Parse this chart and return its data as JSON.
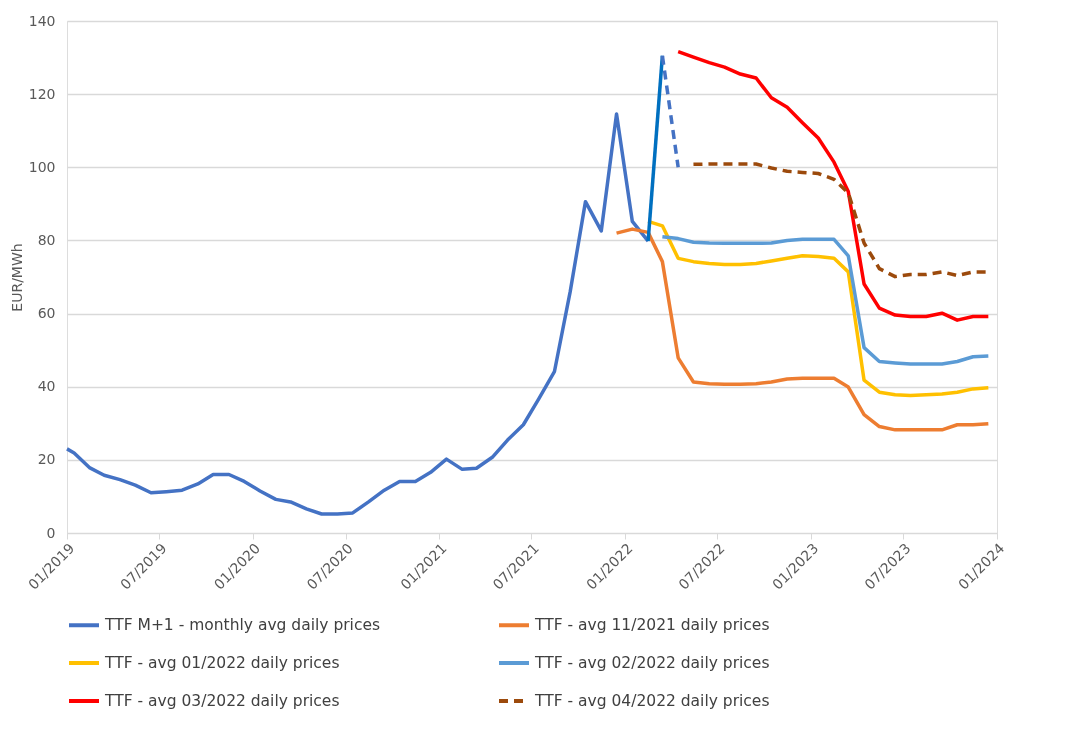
{
  "chart_data": {
    "type": "line",
    "ylabel": "EUR/MWh",
    "xlim": [
      "2019-01-01",
      "2024-01-01"
    ],
    "xticks": [
      {
        "value": "2019-01-01",
        "label": "01/2019"
      },
      {
        "value": "2019-07-01",
        "label": "07/2019"
      },
      {
        "value": "2020-01-01",
        "label": "01/2020"
      },
      {
        "value": "2020-07-01",
        "label": "07/2020"
      },
      {
        "value": "2021-01-01",
        "label": "01/2021"
      },
      {
        "value": "2021-07-01",
        "label": "07/2021"
      },
      {
        "value": "2022-01-01",
        "label": "01/2022"
      },
      {
        "value": "2022-07-01",
        "label": "07/2022"
      },
      {
        "value": "2023-01-01",
        "label": "01/2023"
      },
      {
        "value": "2023-07-01",
        "label": "07/2023"
      },
      {
        "value": "2024-01-01",
        "label": "01/2024"
      }
    ],
    "ylim": [
      0,
      140
    ],
    "yticks": [
      0,
      20,
      40,
      60,
      80,
      100,
      120,
      140
    ],
    "grid": "y",
    "legend": "bottom",
    "line_style": "solid",
    "series": [
      {
        "name": "TTF M+1 - monthly avg daily prices",
        "color": "#4472c4",
        "x": [
          "2019-01-01",
          "2019-01-15",
          "2019-02-15",
          "2019-03-15",
          "2019-04-15",
          "2019-05-15",
          "2019-06-15",
          "2019-07-15",
          "2019-08-15",
          "2019-09-15",
          "2019-10-15",
          "2019-11-15",
          "2019-12-15",
          "2020-01-15",
          "2020-02-15",
          "2020-03-15",
          "2020-04-15",
          "2020-05-15",
          "2020-06-15",
          "2020-07-15",
          "2020-08-15",
          "2020-09-15",
          "2020-10-15",
          "2020-11-15",
          "2020-12-15",
          "2021-01-15",
          "2021-02-15",
          "2021-03-15",
          "2021-04-15",
          "2021-05-15",
          "2021-06-15",
          "2021-07-15",
          "2021-08-15",
          "2021-09-15",
          "2021-10-15",
          "2021-11-15",
          "2021-12-15",
          "2022-01-15",
          "2022-02-15"
        ],
        "values": [
          23.0,
          21.9,
          17.8,
          15.8,
          14.6,
          13.1,
          11.0,
          11.3,
          11.7,
          13.4,
          16.0,
          16.0,
          14.1,
          11.5,
          9.2,
          8.5,
          6.6,
          5.2,
          5.2,
          5.5,
          8.5,
          11.7,
          14.1,
          14.1,
          16.6,
          20.2,
          17.4,
          17.7,
          20.7,
          25.4,
          29.6,
          36.6,
          44.1,
          66,
          90.6,
          82.6,
          114.6,
          85.2,
          79.8
        ]
      },
      {
        "color": "#0070c0",
        "x": [
          "2022-02-15",
          "2022-03-15"
        ],
        "values": [
          79.8,
          130.5
        ]
      },
      {
        "color": "#4472c4",
        "line_style": "dashed",
        "x": [
          "2022-03-15",
          "2022-04-15"
        ],
        "values": [
          130.5,
          100
        ]
      },
      {
        "name": "TTF - avg 11/2021 daily prices",
        "color": "#ed7d31",
        "x": [
          "2021-12-15",
          "2022-01-15",
          "2022-02-15",
          "2022-03-15",
          "2022-04-15",
          "2022-05-15",
          "2022-06-15",
          "2022-07-15",
          "2022-08-15",
          "2022-09-15",
          "2022-10-15",
          "2022-11-15",
          "2022-12-15",
          "2023-01-15",
          "2023-02-15",
          "2023-03-15",
          "2023-04-15",
          "2023-05-15",
          "2023-06-15",
          "2023-07-15",
          "2023-08-15",
          "2023-09-15",
          "2023-10-15",
          "2023-11-15",
          "2023-12-15"
        ],
        "values": [
          82.0,
          83.1,
          82.2,
          74.2,
          47.9,
          41.3,
          40.8,
          40.7,
          40.7,
          40.8,
          41.3,
          42.1,
          42.3,
          42.3,
          42.3,
          39.9,
          32.4,
          29.1,
          28.2,
          28.2,
          28.2,
          28.2,
          29.6,
          29.6,
          29.9
        ]
      },
      {
        "name": "TTF - avg 01/2022 daily prices",
        "color": "#ffc000",
        "x": [
          "2022-02-15",
          "2022-03-15",
          "2022-04-15",
          "2022-05-15",
          "2022-06-15",
          "2022-07-15",
          "2022-08-15",
          "2022-09-15",
          "2022-10-15",
          "2022-11-15",
          "2022-12-15",
          "2023-01-15",
          "2023-02-15",
          "2023-03-15",
          "2023-04-15",
          "2023-05-15",
          "2023-06-15",
          "2023-07-15",
          "2023-08-15",
          "2023-09-15",
          "2023-10-15",
          "2023-11-15",
          "2023-12-15"
        ],
        "values": [
          85.2,
          84.0,
          75.1,
          74.2,
          73.7,
          73.4,
          73.4,
          73.7,
          74.4,
          75.1,
          75.8,
          75.6,
          75.1,
          71.4,
          41.8,
          38.5,
          37.8,
          37.6,
          37.8,
          38.0,
          38.5,
          39.4,
          39.7
        ]
      },
      {
        "name": "TTF - avg 02/2022 daily prices",
        "color": "#5b9bd5",
        "x": [
          "2022-03-15",
          "2022-04-15",
          "2022-05-15",
          "2022-06-15",
          "2022-07-15",
          "2022-08-15",
          "2022-09-15",
          "2022-10-15",
          "2022-11-15",
          "2022-12-15",
          "2023-01-15",
          "2023-02-15",
          "2023-03-15",
          "2023-04-15",
          "2023-05-15",
          "2023-06-15",
          "2023-07-15",
          "2023-08-15",
          "2023-09-15",
          "2023-10-15",
          "2023-11-15",
          "2023-12-15"
        ],
        "values": [
          81.0,
          80.5,
          79.5,
          79.3,
          79.2,
          79.2,
          79.2,
          79.3,
          80.0,
          80.3,
          80.3,
          80.3,
          75.8,
          50.7,
          46.9,
          46.5,
          46.2,
          46.2,
          46.2,
          46.9,
          48.2,
          48.4
        ]
      },
      {
        "name": "TTF - avg 03/2022 daily prices",
        "color": "#ff0000",
        "x": [
          "2022-04-15",
          "2022-05-15",
          "2022-06-15",
          "2022-07-15",
          "2022-08-15",
          "2022-09-15",
          "2022-10-15",
          "2022-11-15",
          "2022-12-15",
          "2023-01-15",
          "2023-02-15",
          "2023-03-15",
          "2023-04-15",
          "2023-05-15",
          "2023-06-15",
          "2023-07-15",
          "2023-08-15",
          "2023-09-15",
          "2023-10-15",
          "2023-11-15",
          "2023-12-15"
        ],
        "values": [
          131.6,
          130.1,
          128.6,
          127.4,
          125.5,
          124.4,
          119.0,
          116.4,
          112.2,
          108.0,
          101.4,
          93.4,
          68.1,
          61.5,
          59.6,
          59.2,
          59.2,
          60.1,
          58.2,
          59.2,
          59.2
        ]
      },
      {
        "name": "TTF - avg 04/2022 daily prices",
        "color": "#9c4a0c",
        "line_style": "dashed",
        "x": [
          "2022-05-15",
          "2022-06-15",
          "2022-07-15",
          "2022-08-15",
          "2022-09-15",
          "2022-10-15",
          "2022-11-15",
          "2022-12-15",
          "2023-01-15",
          "2023-02-15",
          "2023-03-15",
          "2023-04-15",
          "2023-05-15",
          "2023-06-15",
          "2023-07-15",
          "2023-08-15",
          "2023-09-15",
          "2023-10-15",
          "2023-11-15",
          "2023-12-15"
        ],
        "values": [
          100.8,
          100.9,
          100.9,
          100.9,
          100.9,
          99.8,
          98.9,
          98.6,
          98.3,
          96.7,
          93.0,
          79.3,
          72.3,
          70.1,
          70.7,
          70.7,
          71.4,
          70.4,
          71.4,
          71.4
        ]
      }
    ]
  }
}
